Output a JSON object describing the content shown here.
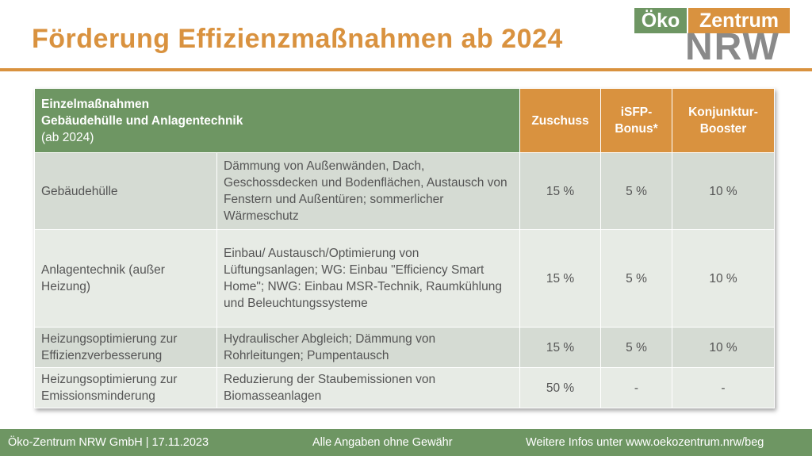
{
  "title": "Förderung Effizienzmaßnahmen ab 2024",
  "logo": {
    "part1": "Öko",
    "part2": "Zentrum",
    "part3": "NRW"
  },
  "table": {
    "header": {
      "line1": "Einzelmaßnahmen",
      "line2": "Gebäudehülle und Anlagentechnik",
      "line3": "(ab 2024)",
      "col_zuschuss": "Zuschuss",
      "col_isfp_1": "iSFP-",
      "col_isfp_2": "Bonus*",
      "col_booster_1": "Konjunktur-",
      "col_booster_2": "Booster"
    },
    "rows": [
      {
        "category": "Gebäudehülle",
        "description": "Dämmung von Außenwänden, Dach, Geschossdecken und Bodenflächen, Austausch von Fenstern und Außentüren; sommerlicher Wärmeschutz",
        "zuschuss": "15 %",
        "isfp": "5 %",
        "booster": "10 %"
      },
      {
        "category": "Anlagentechnik (außer Heizung)",
        "description": "Einbau/ Austausch/Optimierung von Lüftungsanlagen; WG: Einbau \"Efficiency Smart Home\"; NWG: Einbau MSR-Technik, Raumkühlung und Beleuchtungssysteme",
        "zuschuss": "15 %",
        "isfp": "5 %",
        "booster": "10 %"
      },
      {
        "category": "Heizungsoptimierung zur Effizienzverbesserung",
        "description": "Hydraulischer Abgleich; Dämmung von Rohrleitungen; Pumpentausch",
        "zuschuss": "15 %",
        "isfp": "5 %",
        "booster": "10 %"
      },
      {
        "category": "Heizungsoptimierung zur Emissionsminderung",
        "description": "Reduzierung der Staubemissionen von Biomasseanlagen",
        "zuschuss": "50 %",
        "isfp": "-",
        "booster": "-"
      }
    ]
  },
  "footer": {
    "left": "Öko-Zentrum NRW GmbH | 17.11.2023",
    "center": "Alle Angaben ohne Gewähr",
    "right": "Weitere Infos unter www.oekozentrum.nrw/beg"
  },
  "colors": {
    "accent_orange": "#d9923f",
    "accent_green": "#6e9663",
    "row_dark": "#d5dbd3",
    "row_light": "#e7ebe5"
  }
}
